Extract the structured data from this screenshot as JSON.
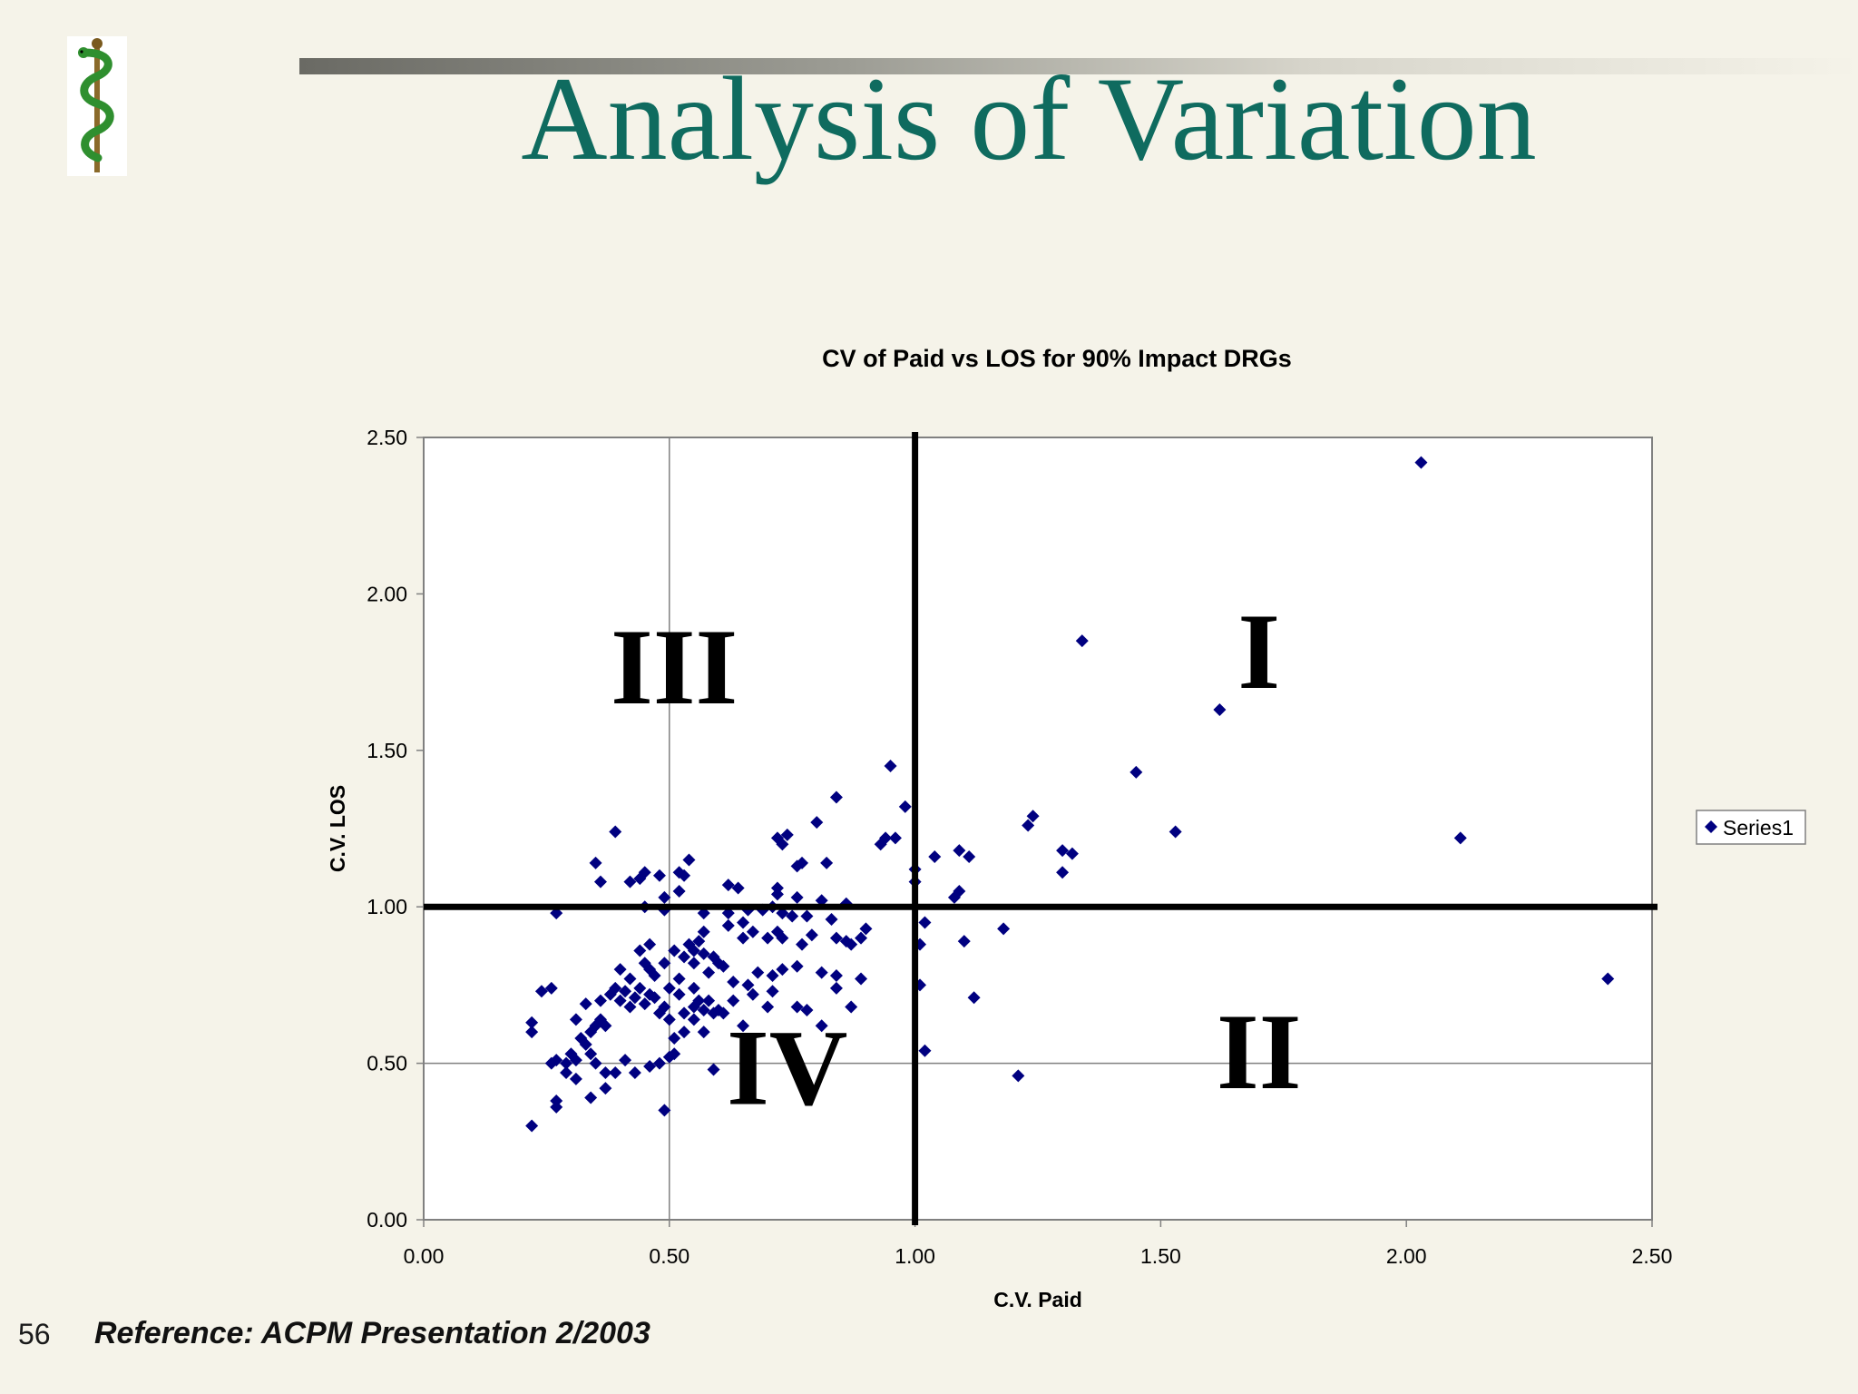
{
  "slide": {
    "title": "Analysis of Variation",
    "number": "56",
    "reference": "Reference:  ACPM Presentation 2/2003"
  },
  "logo": {
    "icon": "rod-of-asclepius-icon"
  },
  "colors": {
    "title": "#0f6b5f",
    "marker": "#000080",
    "background": "#f5f3e9",
    "plot_area": "#ffffff",
    "quadrant_lines": "#000000"
  },
  "chart_data": {
    "type": "scatter",
    "title": "CV of Paid vs LOS for 90% Impact DRGs",
    "xlabel": "C.V. Paid",
    "ylabel": "C.V. LOS",
    "xlim": [
      0,
      2.5
    ],
    "ylim": [
      0,
      2.5
    ],
    "x_ticks": [
      "0.00",
      "0.50",
      "1.00",
      "1.50",
      "2.00",
      "2.50"
    ],
    "y_ticks": [
      "0.00",
      "0.50",
      "1.00",
      "1.50",
      "2.00",
      "2.50"
    ],
    "gridlines": {
      "x": [
        0.5
      ],
      "y": [
        0.5
      ]
    },
    "quadrant_dividers": {
      "x": 1.0,
      "y": 1.0
    },
    "quadrant_labels": [
      {
        "text": "I",
        "x": 1.7,
        "y": 1.78
      },
      {
        "text": "II",
        "x": 1.7,
        "y": 0.5
      },
      {
        "text": "III",
        "x": 0.51,
        "y": 1.73
      },
      {
        "text": "IV",
        "x": 0.74,
        "y": 0.45
      }
    ],
    "legend": {
      "position": "right",
      "entries": [
        "Series1"
      ]
    },
    "series": [
      {
        "name": "Series1",
        "points": [
          [
            2.03,
            2.42
          ],
          [
            1.34,
            1.85
          ],
          [
            1.62,
            1.63
          ],
          [
            1.45,
            1.43
          ],
          [
            1.53,
            1.24
          ],
          [
            2.11,
            1.22
          ],
          [
            2.41,
            0.77
          ],
          [
            1.21,
            0.46
          ],
          [
            0.95,
            1.45
          ],
          [
            0.98,
            1.32
          ],
          [
            0.84,
            1.35
          ],
          [
            0.8,
            1.27
          ],
          [
            1.24,
            1.29
          ],
          [
            1.23,
            1.26
          ],
          [
            1.3,
            1.18
          ],
          [
            1.32,
            1.17
          ],
          [
            1.3,
            1.11
          ],
          [
            0.94,
            1.22
          ],
          [
            0.96,
            1.22
          ],
          [
            0.93,
            1.2
          ],
          [
            1.04,
            1.16
          ],
          [
            1.09,
            1.18
          ],
          [
            1.11,
            1.16
          ],
          [
            1.0,
            1.12
          ],
          [
            1.0,
            1.08
          ],
          [
            1.09,
            1.05
          ],
          [
            1.08,
            1.03
          ],
          [
            0.72,
            1.22
          ],
          [
            0.73,
            1.2
          ],
          [
            0.74,
            1.23
          ],
          [
            0.76,
            1.13
          ],
          [
            0.77,
            1.14
          ],
          [
            0.82,
            1.14
          ],
          [
            0.39,
            1.24
          ],
          [
            0.35,
            1.14
          ],
          [
            0.36,
            1.08
          ],
          [
            0.42,
            1.08
          ],
          [
            0.44,
            1.09
          ],
          [
            0.45,
            1.11
          ],
          [
            0.48,
            1.1
          ],
          [
            0.52,
            1.11
          ],
          [
            0.53,
            1.1
          ],
          [
            0.54,
            1.15
          ],
          [
            0.52,
            1.05
          ],
          [
            0.49,
            1.03
          ],
          [
            0.45,
            1.0
          ],
          [
            0.49,
            0.99
          ],
          [
            0.62,
            1.07
          ],
          [
            0.64,
            1.06
          ],
          [
            0.72,
            1.06
          ],
          [
            0.72,
            1.04
          ],
          [
            0.76,
            1.03
          ],
          [
            0.81,
            1.02
          ],
          [
            0.86,
            1.01
          ],
          [
            0.27,
            0.98
          ],
          [
            0.57,
            0.98
          ],
          [
            0.62,
            0.98
          ],
          [
            0.66,
            0.99
          ],
          [
            0.69,
            0.99
          ],
          [
            0.71,
            1.0
          ],
          [
            0.73,
            0.98
          ],
          [
            0.75,
            0.97
          ],
          [
            0.78,
            0.97
          ],
          [
            0.83,
            0.96
          ],
          [
            0.65,
            0.95
          ],
          [
            0.62,
            0.94
          ],
          [
            0.57,
            0.92
          ],
          [
            0.56,
            0.89
          ],
          [
            0.54,
            0.88
          ],
          [
            0.55,
            0.86
          ],
          [
            0.57,
            0.85
          ],
          [
            0.59,
            0.84
          ],
          [
            0.53,
            0.84
          ],
          [
            0.51,
            0.86
          ],
          [
            0.46,
            0.88
          ],
          [
            0.44,
            0.86
          ],
          [
            0.45,
            0.82
          ],
          [
            0.49,
            0.82
          ],
          [
            0.46,
            0.8
          ],
          [
            0.55,
            0.82
          ],
          [
            0.6,
            0.82
          ],
          [
            0.65,
            0.9
          ],
          [
            0.67,
            0.92
          ],
          [
            0.7,
            0.9
          ],
          [
            0.72,
            0.92
          ],
          [
            0.73,
            0.9
          ],
          [
            0.77,
            0.88
          ],
          [
            0.79,
            0.91
          ],
          [
            0.84,
            0.9
          ],
          [
            0.86,
            0.89
          ],
          [
            0.87,
            0.88
          ],
          [
            0.89,
            0.9
          ],
          [
            0.9,
            0.93
          ],
          [
            1.01,
            0.88
          ],
          [
            1.02,
            0.95
          ],
          [
            1.1,
            0.89
          ],
          [
            1.18,
            0.93
          ],
          [
            1.01,
            0.75
          ],
          [
            1.12,
            0.71
          ],
          [
            1.02,
            0.54
          ],
          [
            0.4,
            0.8
          ],
          [
            0.42,
            0.77
          ],
          [
            0.44,
            0.74
          ],
          [
            0.46,
            0.72
          ],
          [
            0.47,
            0.78
          ],
          [
            0.52,
            0.77
          ],
          [
            0.55,
            0.74
          ],
          [
            0.58,
            0.79
          ],
          [
            0.61,
            0.81
          ],
          [
            0.63,
            0.76
          ],
          [
            0.66,
            0.75
          ],
          [
            0.68,
            0.79
          ],
          [
            0.71,
            0.78
          ],
          [
            0.73,
            0.8
          ],
          [
            0.76,
            0.81
          ],
          [
            0.81,
            0.79
          ],
          [
            0.84,
            0.78
          ],
          [
            0.89,
            0.77
          ],
          [
            0.84,
            0.74
          ],
          [
            0.87,
            0.68
          ],
          [
            0.71,
            0.73
          ],
          [
            0.67,
            0.72
          ],
          [
            0.63,
            0.7
          ],
          [
            0.58,
            0.7
          ],
          [
            0.55,
            0.68
          ],
          [
            0.52,
            0.72
          ],
          [
            0.5,
            0.74
          ],
          [
            0.49,
            0.68
          ],
          [
            0.47,
            0.71
          ],
          [
            0.45,
            0.69
          ],
          [
            0.43,
            0.71
          ],
          [
            0.41,
            0.73
          ],
          [
            0.39,
            0.74
          ],
          [
            0.4,
            0.7
          ],
          [
            0.42,
            0.68
          ],
          [
            0.38,
            0.72
          ],
          [
            0.36,
            0.7
          ],
          [
            0.33,
            0.69
          ],
          [
            0.31,
            0.64
          ],
          [
            0.35,
            0.62
          ],
          [
            0.36,
            0.64
          ],
          [
            0.37,
            0.62
          ],
          [
            0.34,
            0.6
          ],
          [
            0.32,
            0.58
          ],
          [
            0.33,
            0.56
          ],
          [
            0.24,
            0.73
          ],
          [
            0.26,
            0.74
          ],
          [
            0.22,
            0.63
          ],
          [
            0.22,
            0.6
          ],
          [
            0.26,
            0.5
          ],
          [
            0.27,
            0.51
          ],
          [
            0.29,
            0.5
          ],
          [
            0.3,
            0.53
          ],
          [
            0.31,
            0.51
          ],
          [
            0.29,
            0.47
          ],
          [
            0.31,
            0.45
          ],
          [
            0.34,
            0.53
          ],
          [
            0.35,
            0.5
          ],
          [
            0.37,
            0.47
          ],
          [
            0.39,
            0.47
          ],
          [
            0.41,
            0.51
          ],
          [
            0.43,
            0.47
          ],
          [
            0.46,
            0.49
          ],
          [
            0.48,
            0.5
          ],
          [
            0.5,
            0.52
          ],
          [
            0.51,
            0.53
          ],
          [
            0.51,
            0.58
          ],
          [
            0.53,
            0.6
          ],
          [
            0.55,
            0.64
          ],
          [
            0.57,
            0.67
          ],
          [
            0.59,
            0.66
          ],
          [
            0.6,
            0.67
          ],
          [
            0.65,
            0.62
          ],
          [
            0.7,
            0.68
          ],
          [
            0.76,
            0.68
          ],
          [
            0.78,
            0.67
          ],
          [
            0.81,
            0.62
          ],
          [
            0.57,
            0.6
          ],
          [
            0.53,
            0.66
          ],
          [
            0.5,
            0.64
          ],
          [
            0.48,
            0.66
          ],
          [
            0.59,
            0.48
          ],
          [
            0.27,
            0.38
          ],
          [
            0.27,
            0.36
          ],
          [
            0.34,
            0.39
          ],
          [
            0.37,
            0.42
          ],
          [
            0.49,
            0.35
          ],
          [
            0.22,
            0.3
          ],
          [
            0.56,
            0.7
          ],
          [
            0.61,
            0.66
          ]
        ]
      }
    ]
  }
}
